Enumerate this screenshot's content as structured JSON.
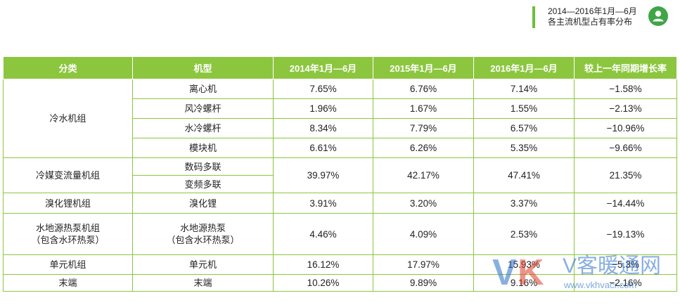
{
  "header": {
    "title_line1": "2014—2016年1月—6月",
    "title_line2": "各主流机型占有率分布"
  },
  "colors": {
    "accent": "#8cc63f",
    "title_bar": "#6cbf3a",
    "avatar": "#3fa648"
  },
  "table": {
    "headers": [
      "分类",
      "机型",
      "2014年1月—6月",
      "2015年1月—6月",
      "2016年1月—6月",
      "较上一年同期增长率"
    ],
    "rows": [
      {
        "category": "冷水机组",
        "model": "离心机",
        "y2014": "7.65%",
        "y2015": "6.76%",
        "y2016": "7.14%",
        "growth": "−1.58%"
      },
      {
        "model": "风冷螺杆",
        "y2014": "1.96%",
        "y2015": "1.67%",
        "y2016": "1.55%",
        "growth": "−2.13%"
      },
      {
        "model": "水冷螺杆",
        "y2014": "8.34%",
        "y2015": "7.79%",
        "y2016": "6.57%",
        "growth": "−10.96%"
      },
      {
        "model": "模块机",
        "y2014": "6.61%",
        "y2015": "6.26%",
        "y2016": "5.35%",
        "growth": "−9.66%"
      },
      {
        "category": "冷媒变流量机组",
        "model": "数码多联",
        "y2014": "39.97%",
        "y2015": "42.17%",
        "y2016": "47.41%",
        "growth": "21.35%"
      },
      {
        "model": "变频多联"
      },
      {
        "category": "溴化锂机组",
        "model": "溴化锂",
        "y2014": "3.91%",
        "y2015": "3.20%",
        "y2016": "3.37%",
        "growth": "−14.44%"
      },
      {
        "category_line1": "水地源热泵机组",
        "category_line2": "（包含水环热泵）",
        "model_line1": "水地源热泵",
        "model_line2": "（包含水环热泵）",
        "y2014": "4.46%",
        "y2015": "4.09%",
        "y2016": "2.53%",
        "growth": "−19.13%"
      },
      {
        "category": "单元机组",
        "model": "单元机",
        "y2014": "16.12%",
        "y2015": "17.97%",
        "y2016": "15.93%",
        "growth": "−5.3%"
      },
      {
        "category": "末端",
        "model": "末端",
        "y2014": "10.26%",
        "y2015": "9.89%",
        "y2016": "9.16%",
        "growth": "−2.16%"
      }
    ]
  },
  "watermark": {
    "logo_v": "V",
    "logo_k": "K",
    "name": "V客暖通网",
    "url": "www.vkhvacr.com"
  }
}
